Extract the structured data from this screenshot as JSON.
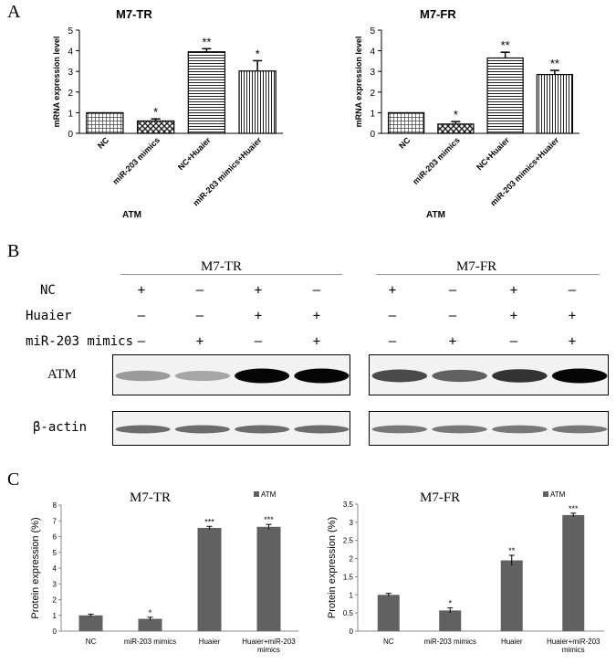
{
  "panel_labels": {
    "a": "A",
    "b": "B",
    "c": "C"
  },
  "chart_data": [
    {
      "type": "bar",
      "title": "M7-TR",
      "ylabel": "mRNA expression level",
      "xlabel": "ATM",
      "categories": [
        "NC",
        "miR-203 mimics",
        "NC+Huaier",
        "miR-203 mimics+Huaier"
      ],
      "values": [
        1.0,
        0.6,
        3.95,
        3.02
      ],
      "errors": [
        0.02,
        0.1,
        0.15,
        0.5
      ],
      "significance": [
        "",
        "*",
        "**",
        "*"
      ],
      "ylim": [
        0,
        5
      ],
      "yticks": [
        "0",
        "1",
        "2",
        "3",
        "4",
        "5"
      ],
      "patterns": [
        "grid",
        "checker",
        "hlines",
        "vlines"
      ]
    },
    {
      "type": "bar",
      "title": "M7-FR",
      "ylabel": "mRNA expression level",
      "xlabel": "ATM",
      "categories": [
        "NC",
        "miR-203 mimics",
        "NC+Huaier",
        "miR-203 mimics+Huaier"
      ],
      "values": [
        1.0,
        0.45,
        3.65,
        2.85
      ],
      "errors": [
        0.02,
        0.12,
        0.28,
        0.2
      ],
      "significance": [
        "",
        "*",
        "**",
        "**"
      ],
      "ylim": [
        0,
        5
      ],
      "yticks": [
        "0",
        "1",
        "2",
        "3",
        "4",
        "5"
      ],
      "patterns": [
        "grid",
        "checker",
        "hlines",
        "vlines"
      ]
    },
    {
      "type": "bar",
      "title": "M7-TR",
      "ylabel": "Protein expression (%)",
      "legend": "ATM",
      "categories": [
        "NC",
        "miR-203 mimics",
        "Huaier",
        "Huaier+miR-203 mimics"
      ],
      "values": [
        1.0,
        0.78,
        6.55,
        6.62
      ],
      "errors": [
        0.08,
        0.1,
        0.1,
        0.15
      ],
      "significance": [
        "",
        "*",
        "***",
        "***"
      ],
      "ylim": [
        0,
        8
      ],
      "yticks": [
        "0",
        "1",
        "2",
        "3",
        "4",
        "5",
        "6",
        "7",
        "8"
      ],
      "color": "#616161"
    },
    {
      "type": "bar",
      "title": "M7-FR",
      "ylabel": "Protein expression (%)",
      "legend": "ATM",
      "categories": [
        "NC",
        "miR-203 mimics",
        "Huaier",
        "Huaier+miR-203 mimics"
      ],
      "values": [
        1.0,
        0.57,
        1.95,
        3.2
      ],
      "errors": [
        0.04,
        0.07,
        0.14,
        0.05
      ],
      "significance": [
        "",
        "*",
        "**",
        "***"
      ],
      "ylim": [
        0,
        3.5
      ],
      "yticks": [
        "0",
        "0.5",
        "1",
        "1.5",
        "2",
        "2.5",
        "3",
        "3.5"
      ],
      "color": "#616161"
    }
  ],
  "western": {
    "groups": [
      "M7-TR",
      "M7-FR"
    ],
    "row_labels": [
      "NC",
      "Huaier",
      "miR-203 mimics"
    ],
    "signs": [
      [
        "+",
        "—",
        "+",
        "—",
        "+",
        "—",
        "+",
        "—"
      ],
      [
        "—",
        "—",
        "+",
        "+",
        "—",
        "—",
        "+",
        "+"
      ],
      [
        "—",
        "+",
        "—",
        "+",
        "—",
        "+",
        "—",
        "+"
      ]
    ],
    "blot_labels": [
      "ATM",
      "β-actin"
    ],
    "atm_intensity": [
      0.35,
      0.3,
      1.0,
      1.0,
      0.7,
      0.6,
      0.8,
      1.0
    ]
  }
}
